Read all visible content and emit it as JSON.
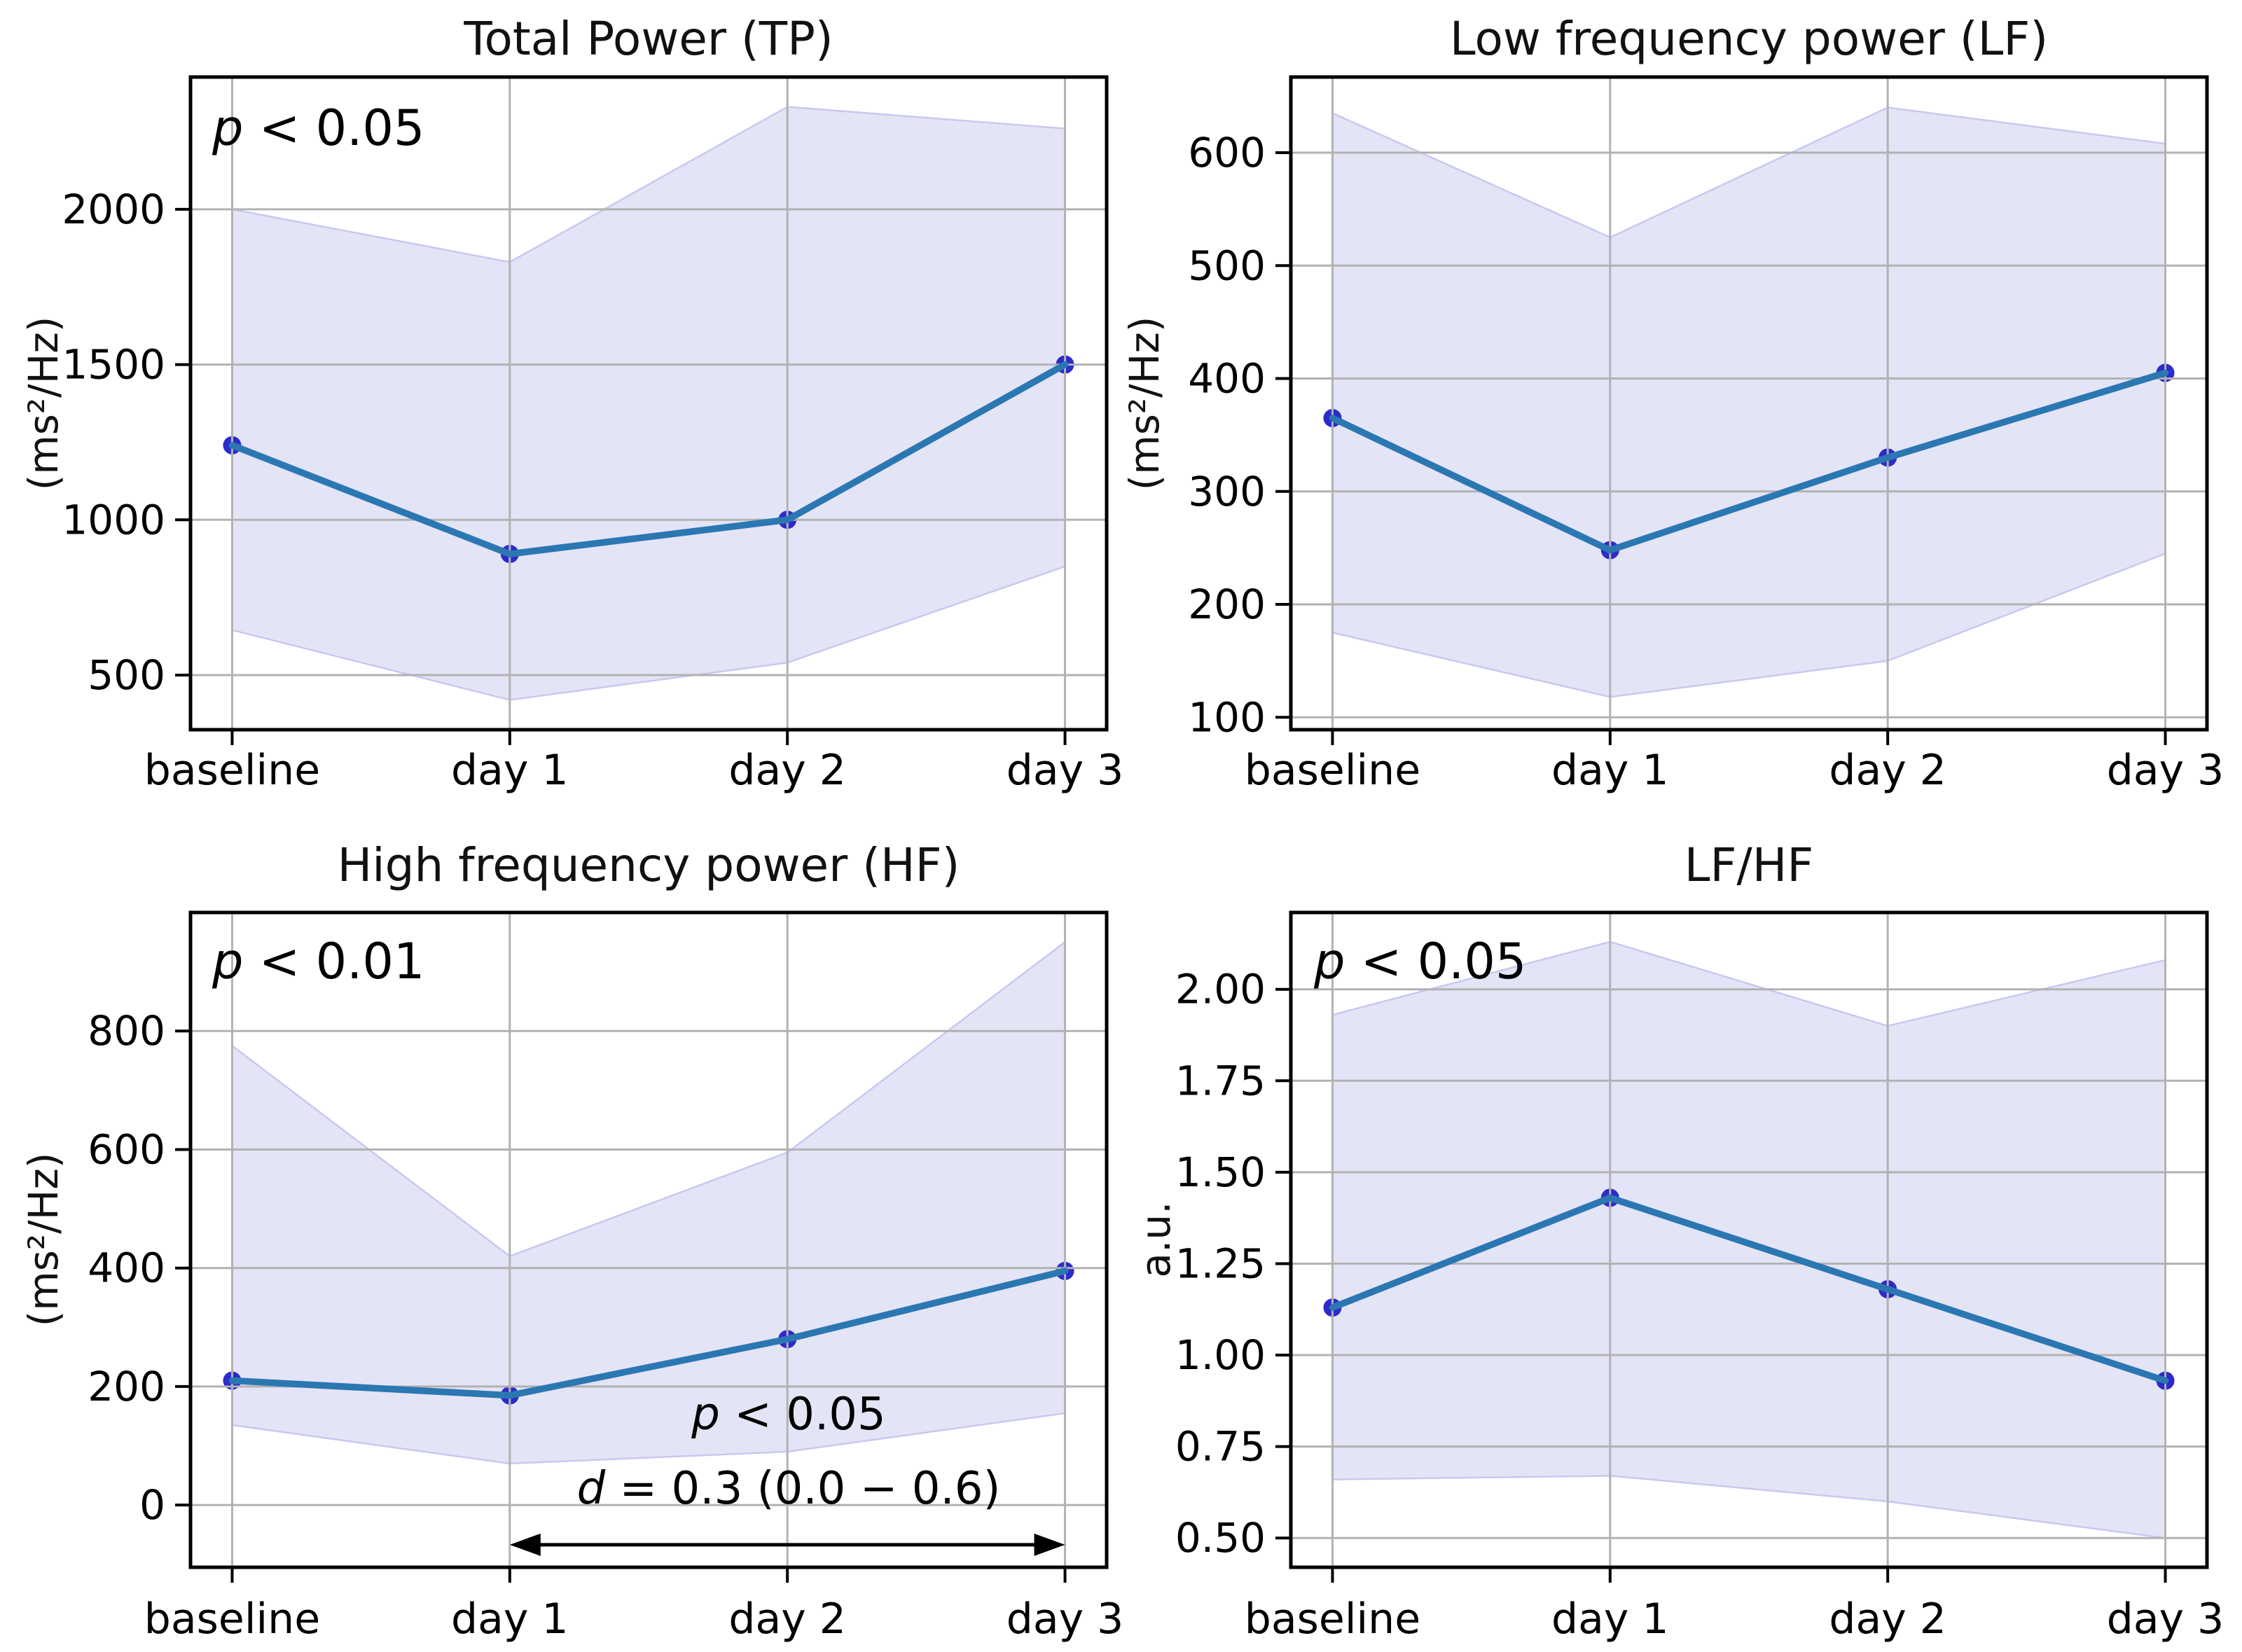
{
  "figure": {
    "background": "#ffffff",
    "x_axis_categories": [
      "baseline",
      "day 1",
      "day 2",
      "day 3"
    ]
  },
  "colors": {
    "mean_line": "#2b77b2",
    "marker": "#2d2bc9",
    "band_fill": "#e4e4f7",
    "band_edge": "#c8c8f0",
    "grid": "#b2b2b2",
    "spine": "#000000",
    "text": "#000000"
  },
  "chart_data": [
    {
      "id": "tp",
      "type": "line",
      "title": "Total Power (TP)",
      "ylabel": "(ms²/Hz)",
      "xlabel": "",
      "p_note": "p < 0.05",
      "categories": [
        "baseline",
        "day 1",
        "day 2",
        "day 3"
      ],
      "series": [
        {
          "name": "mean",
          "values": [
            1240,
            890,
            1000,
            1500
          ]
        },
        {
          "name": "band_lower",
          "values": [
            645,
            420,
            540,
            850
          ]
        },
        {
          "name": "band_upper",
          "values": [
            2000,
            1830,
            2330,
            2260
          ]
        }
      ],
      "yticks": [
        500,
        1000,
        1500,
        2000
      ],
      "ytick_labels": [
        "500",
        "1000",
        "1500",
        "2000"
      ],
      "ylim": [
        324,
        2426
      ],
      "xlim": [
        -0.15,
        3.15
      ],
      "grid": true,
      "legend": null
    },
    {
      "id": "lf",
      "type": "line",
      "title": "Low frequency power (LF)",
      "ylabel": "(ms²/Hz)",
      "xlabel": "",
      "p_note": null,
      "categories": [
        "baseline",
        "day 1",
        "day 2",
        "day 3"
      ],
      "series": [
        {
          "name": "mean",
          "values": [
            365,
            248,
            330,
            405
          ]
        },
        {
          "name": "band_lower",
          "values": [
            175,
            118,
            150,
            245
          ]
        },
        {
          "name": "band_upper",
          "values": [
            635,
            525,
            640,
            608
          ]
        }
      ],
      "yticks": [
        100,
        200,
        300,
        400,
        500,
        600
      ],
      "ytick_labels": [
        "100",
        "200",
        "300",
        "400",
        "500",
        "600"
      ],
      "ylim": [
        89,
        667
      ],
      "xlim": [
        -0.15,
        3.15
      ],
      "grid": true,
      "legend": null
    },
    {
      "id": "hf",
      "type": "line",
      "title": "High frequency power (HF)",
      "ylabel": "(ms²/Hz)",
      "xlabel": "",
      "p_note": "p < 0.01",
      "categories": [
        "baseline",
        "day 1",
        "day 2",
        "day 3"
      ],
      "series": [
        {
          "name": "mean",
          "values": [
            210,
            185,
            280,
            395
          ]
        },
        {
          "name": "band_lower",
          "values": [
            135,
            70,
            90,
            155
          ]
        },
        {
          "name": "band_upper",
          "values": [
            775,
            420,
            595,
            950
          ]
        }
      ],
      "yticks": [
        0,
        200,
        400,
        600,
        800
      ],
      "ytick_labels": [
        "0",
        "200",
        "400",
        "600",
        "800"
      ],
      "ylim": [
        -105,
        1000
      ],
      "xlim": [
        -0.15,
        3.15
      ],
      "grid": true,
      "legend": null,
      "comparison": {
        "from_category": "day 1",
        "to_category": "day 3",
        "from_x": 1,
        "to_x": 3,
        "arrow_y": -67,
        "label_p": "p < 0.05",
        "label_d": "d = 0.3 (0.0 − 0.6)"
      }
    },
    {
      "id": "lfhf",
      "type": "line",
      "title": "LF/HF",
      "ylabel": "a.u.",
      "xlabel": "",
      "p_note": "p < 0.05",
      "categories": [
        "baseline",
        "day 1",
        "day 2",
        "day 3"
      ],
      "series": [
        {
          "name": "mean",
          "values": [
            1.13,
            1.43,
            1.18,
            0.93
          ]
        },
        {
          "name": "band_lower",
          "values": [
            0.66,
            0.67,
            0.6,
            0.5
          ]
        },
        {
          "name": "band_upper",
          "values": [
            1.93,
            2.13,
            1.9,
            2.08
          ]
        }
      ],
      "yticks": [
        0.5,
        0.75,
        1.0,
        1.25,
        1.5,
        1.75,
        2.0
      ],
      "ytick_labels": [
        "0.50",
        "0.75",
        "1.00",
        "1.25",
        "1.50",
        "1.75",
        "2.00"
      ],
      "ylim": [
        0.42,
        2.21
      ],
      "xlim": [
        -0.15,
        3.15
      ],
      "grid": true,
      "legend": null
    }
  ]
}
